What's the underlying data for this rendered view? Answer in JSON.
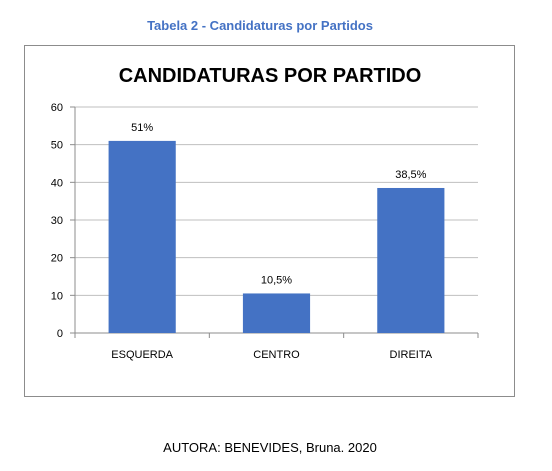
{
  "header": {
    "table_caption": "Tabela 2 - Candidaturas por Partidos"
  },
  "footer": {
    "author": "AUTORA: BENEVIDES, Bruna. 2020"
  },
  "colors": {
    "bar": "#4472c4",
    "grid": "#bfbfbf",
    "axis": "#8c8c8c",
    "caption": "#4472c4"
  },
  "chart_data": {
    "type": "bar",
    "title": "CANDIDATURAS POR PARTIDO",
    "categories": [
      "ESQUERDA",
      "CENTRO",
      "DIREITA"
    ],
    "values": [
      51,
      10.5,
      38.5
    ],
    "data_labels": [
      "51%",
      "10,5%",
      "38,5%"
    ],
    "ylim": [
      0,
      60
    ],
    "yticks": [
      0,
      10,
      20,
      30,
      40,
      50,
      60
    ],
    "grid": true,
    "legend": "none"
  }
}
